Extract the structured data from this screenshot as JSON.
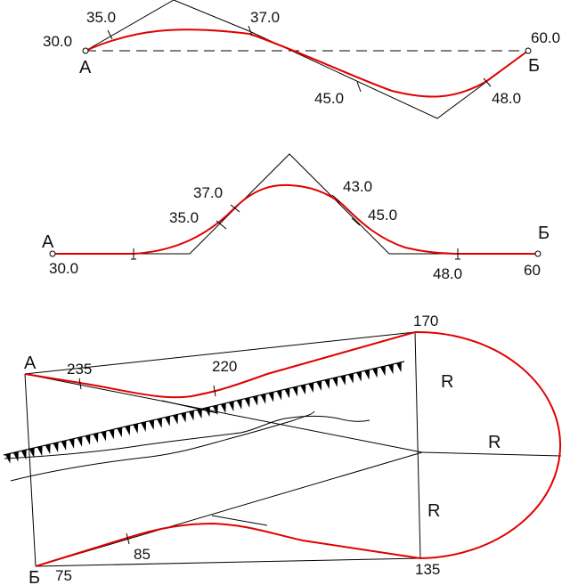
{
  "colors": {
    "curve": "#e00000",
    "line": "#000000",
    "background": "#ffffff"
  },
  "diagram1": {
    "point_a": "А",
    "point_b": "Б",
    "start_value": "30.0",
    "end_value": "60.0",
    "marks": [
      "35.0",
      "37.0",
      "45.0",
      "48.0"
    ]
  },
  "diagram2": {
    "point_a": "А",
    "point_b": "Б",
    "start_value": "30.0",
    "end_value": "60",
    "marks": [
      "35.0",
      "37.0",
      "43.0",
      "45.0",
      "48.0"
    ]
  },
  "diagram3": {
    "point_a": "А",
    "point_b": "Б",
    "corner_labels": [
      "170",
      "135"
    ],
    "marks": [
      "235",
      "220",
      "85",
      "75"
    ],
    "radius_label": "R"
  }
}
